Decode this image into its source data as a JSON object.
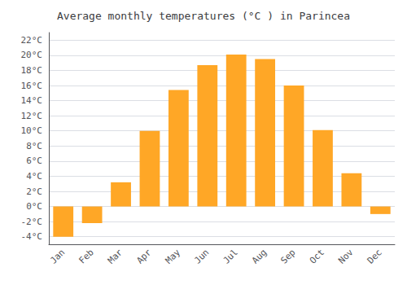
{
  "chart_data": {
    "type": "bar",
    "title": "Average monthly temperatures (°C ) in Parincea",
    "categories": [
      "Jan",
      "Feb",
      "Mar",
      "Apr",
      "May",
      "Jun",
      "Jul",
      "Aug",
      "Sep",
      "Oct",
      "Nov",
      "Dec"
    ],
    "values": [
      -4.0,
      -2.2,
      3.2,
      10.0,
      15.4,
      18.7,
      20.1,
      19.5,
      16.0,
      10.1,
      4.4,
      -1.0
    ],
    "color": "#FFA726",
    "ylim": [
      -5,
      23
    ],
    "yticks": [
      {
        "value": -4,
        "label": "-4°C"
      },
      {
        "value": -2,
        "label": "-2°C"
      },
      {
        "value": 0,
        "label": "0°C"
      },
      {
        "value": 2,
        "label": "2°C"
      },
      {
        "value": 4,
        "label": "4°C"
      },
      {
        "value": 6,
        "label": "6°C"
      },
      {
        "value": 8,
        "label": "8°C"
      },
      {
        "value": 10,
        "label": "10°C"
      },
      {
        "value": 12,
        "label": "12°C"
      },
      {
        "value": 14,
        "label": "14°C"
      },
      {
        "value": 16,
        "label": "16°C"
      },
      {
        "value": 18,
        "label": "18°C"
      },
      {
        "value": 20,
        "label": "20°C"
      },
      {
        "value": 22,
        "label": "22°C"
      }
    ],
    "grid": true
  }
}
